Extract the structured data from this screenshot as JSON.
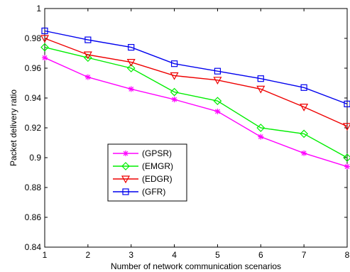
{
  "chart_data": {
    "type": "line",
    "title": "",
    "xlabel": "Number of network communication scenarios",
    "ylabel": "Packet delivery ratio",
    "x": [
      1,
      2,
      3,
      4,
      5,
      6,
      7,
      8
    ],
    "xlim": [
      1,
      8
    ],
    "ylim": [
      0.84,
      1.0
    ],
    "xticks": [
      "1",
      "2",
      "3",
      "4",
      "5",
      "6",
      "7",
      "8"
    ],
    "yticks": [
      "0.84",
      "0.86",
      "0.88",
      "0.9",
      "0.92",
      "0.94",
      "0.96",
      "0.98",
      "1"
    ],
    "ytick_values": [
      0.84,
      0.86,
      0.88,
      0.9,
      0.92,
      0.94,
      0.96,
      0.98,
      1.0
    ],
    "grid": false,
    "legend_position": "lower-left inside",
    "series": [
      {
        "name": "(GPSR)",
        "color": "#ff00ff",
        "marker": "star",
        "values": [
          0.967,
          0.954,
          0.946,
          0.939,
          0.931,
          0.914,
          0.903,
          0.894
        ]
      },
      {
        "name": "(EMGR)",
        "color": "#00ee00",
        "marker": "diamond",
        "values": [
          0.974,
          0.967,
          0.96,
          0.944,
          0.938,
          0.92,
          0.916,
          0.9
        ]
      },
      {
        "name": "(EDGR)",
        "color": "#ee0000",
        "marker": "triangle-down",
        "values": [
          0.98,
          0.969,
          0.964,
          0.955,
          0.952,
          0.946,
          0.934,
          0.921
        ]
      },
      {
        "name": "(GFR)",
        "color": "#0000ee",
        "marker": "square",
        "values": [
          0.985,
          0.979,
          0.974,
          0.963,
          0.958,
          0.953,
          0.947,
          0.936
        ]
      }
    ]
  }
}
